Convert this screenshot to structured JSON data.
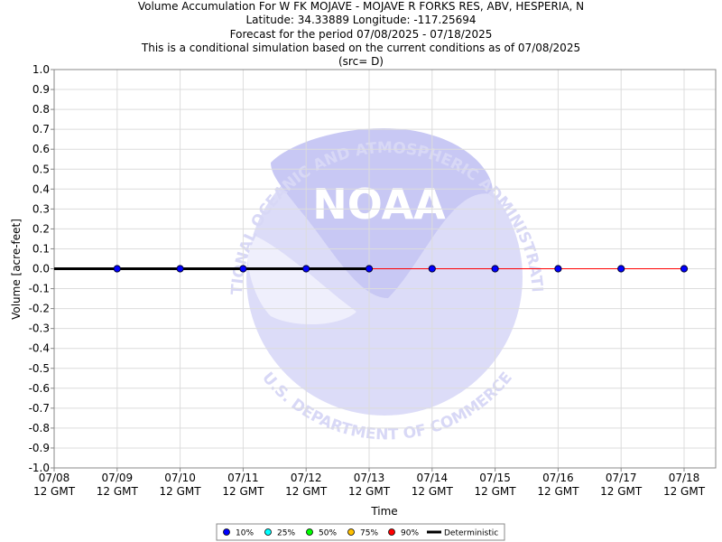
{
  "titles": {
    "line1": "Volume Accumulation For W FK MOJAVE - MOJAVE R FORKS RES, ABV, HESPERIA, N",
    "line2": "Latitude: 34.33889 Longitude: -117.25694",
    "line3": "Forecast for the period 07/08/2025 - 07/18/2025",
    "line4": "This is a conditional simulation based on the current conditions as of 07/08/2025",
    "line5": "(src= D)"
  },
  "watermark": {
    "top_text": "NATIONAL OCEANIC AND ATMOSPHERIC ADMINISTRATION",
    "center_text": "NOAA",
    "bottom_text": "U.S. DEPARTMENT OF COMMERCE"
  },
  "chart_data": {
    "type": "line",
    "xlabel": "Time",
    "ylabel": "Volume [acre-feet]",
    "ylim": [
      -1.0,
      1.0
    ],
    "yticks": [
      1.0,
      0.9,
      0.8,
      0.7,
      0.6,
      0.5,
      0.4,
      0.3,
      0.2,
      0.1,
      0.0,
      -0.1,
      -0.2,
      -0.3,
      -0.4,
      -0.5,
      -0.6,
      -0.7,
      -0.8,
      -0.9,
      -1.0
    ],
    "ytick_labels": [
      "1.0",
      "0.9",
      "0.8",
      "0.7",
      "0.6",
      "0.5",
      "0.4",
      "0.3",
      "0.2",
      "0.1",
      "0.0",
      "-0.1",
      "-0.2",
      "-0.3",
      "-0.4",
      "-0.5",
      "-0.6",
      "-0.7",
      "-0.8",
      "-0.9",
      "-1.0"
    ],
    "xtick_dates": [
      "07/08",
      "07/09",
      "07/10",
      "07/11",
      "07/12",
      "07/13",
      "07/14",
      "07/15",
      "07/16",
      "07/17",
      "07/18"
    ],
    "xtick_time": "12 GMT",
    "grid": true,
    "legend_position": "bottom-center",
    "legend": [
      {
        "label": "10%",
        "color": "#0000ff",
        "kind": "dot"
      },
      {
        "label": "25%",
        "color": "#00ffff",
        "kind": "dot"
      },
      {
        "label": "50%",
        "color": "#00ff00",
        "kind": "dot"
      },
      {
        "label": "75%",
        "color": "#ffc000",
        "kind": "dot"
      },
      {
        "label": "90%",
        "color": "#ff0000",
        "kind": "dot"
      },
      {
        "label": "Deterministic",
        "color": "#000000",
        "kind": "line"
      }
    ],
    "series": [
      {
        "name": "Deterministic",
        "color": "#000000",
        "x": [
          "07/08",
          "07/09",
          "07/10",
          "07/11",
          "07/12",
          "07/13"
        ],
        "values": [
          0.0,
          0.0,
          0.0,
          0.0,
          0.0,
          0.0
        ]
      },
      {
        "name": "90%",
        "color": "#ff0000",
        "x": [
          "07/13",
          "07/14",
          "07/15",
          "07/16",
          "07/17",
          "07/18"
        ],
        "values": [
          0.0,
          0.0,
          0.0,
          0.0,
          0.0,
          0.0
        ]
      },
      {
        "name": "10%",
        "color": "#0000ff",
        "x": [
          "07/09",
          "07/10",
          "07/11",
          "07/12",
          "07/13",
          "07/14",
          "07/15",
          "07/16",
          "07/17",
          "07/18"
        ],
        "values": [
          0.0,
          0.0,
          0.0,
          0.0,
          0.0,
          0.0,
          0.0,
          0.0,
          0.0,
          0.0
        ]
      }
    ]
  }
}
